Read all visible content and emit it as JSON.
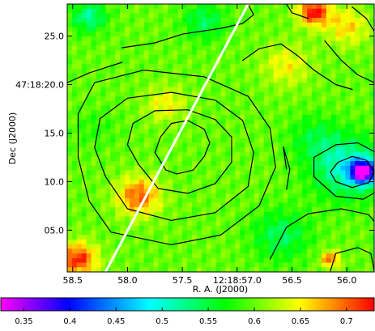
{
  "chart_data": {
    "type": "heatmap",
    "title": "",
    "xlabel": "R. A. (J2000)",
    "ylabel": "Dec (J2000)",
    "x_ticks": [
      "58.5",
      "58.0",
      "57.5",
      "12:18:57.0",
      "56.5",
      "56.0"
    ],
    "x_tick_values": [
      58.5,
      58.0,
      57.5,
      57.0,
      56.5,
      56.0
    ],
    "xlim": [
      58.55,
      55.75
    ],
    "y_ticks": [
      "05.0",
      "10.0",
      "15.0",
      "47:18:20.0",
      "25.0"
    ],
    "y_tick_values": [
      5.0,
      10.0,
      15.0,
      20.0,
      25.0
    ],
    "ylim": [
      0.7,
      28.3
    ],
    "colorbar": {
      "ticks": [
        "0.35",
        "0.4",
        "0.45",
        "0.5",
        "0.55",
        "0.6",
        "0.65",
        "0.7"
      ],
      "tick_values": [
        0.35,
        0.4,
        0.45,
        0.5,
        0.55,
        0.6,
        0.65,
        0.7
      ],
      "range": [
        0.325,
        0.73
      ],
      "colors": [
        "#ff00ff",
        "#0000ff",
        "#00ffff",
        "#00ff00",
        "#ffff00",
        "#ff0000"
      ]
    },
    "image": {
      "grid": [
        64,
        58
      ],
      "background": 0.6,
      "features": [
        {
          "kind": "blob",
          "ra": 55.85,
          "dec": 11.0,
          "sigma": 0.8,
          "amp": -0.26
        },
        {
          "kind": "blob",
          "ra": 56.0,
          "dec": 11.5,
          "sigma": 2.2,
          "amp": -0.1
        },
        {
          "kind": "blob",
          "ra": 56.3,
          "dec": 14.5,
          "sigma": 1.6,
          "amp": -0.04
        },
        {
          "kind": "blob",
          "ra": 56.6,
          "dec": 4.5,
          "sigma": 1.8,
          "amp": -0.06
        },
        {
          "kind": "blob",
          "ra": 57.9,
          "dec": 8.5,
          "sigma": 1.4,
          "amp": 0.1
        },
        {
          "kind": "blob",
          "ra": 58.45,
          "dec": 2.0,
          "sigma": 1.2,
          "amp": 0.12
        },
        {
          "kind": "blob",
          "ra": 56.3,
          "dec": 27.5,
          "sigma": 1.0,
          "amp": 0.13
        },
        {
          "kind": "blob",
          "ra": 56.0,
          "dec": 26.0,
          "sigma": 1.4,
          "amp": 0.06
        },
        {
          "kind": "blob",
          "ra": 57.3,
          "dec": 26.5,
          "sigma": 1.3,
          "amp": -0.06
        },
        {
          "kind": "blob",
          "ra": 58.35,
          "dec": 27.0,
          "sigma": 1.1,
          "amp": -0.08
        },
        {
          "kind": "blob",
          "ra": 57.65,
          "dec": 18.0,
          "sigma": 1.3,
          "amp": 0.05
        },
        {
          "kind": "blob",
          "ra": 57.35,
          "dec": 14.5,
          "sigma": 1.4,
          "amp": 0.0
        },
        {
          "kind": "blob",
          "ra": 58.3,
          "dec": 15.5,
          "sigma": 1.4,
          "amp": -0.02
        },
        {
          "kind": "blob",
          "ra": 56.55,
          "dec": 22.0,
          "sigma": 1.5,
          "amp": 0.05
        },
        {
          "kind": "blob",
          "ra": 56.15,
          "dec": 2.0,
          "sigma": 0.6,
          "amp": 0.1
        }
      ]
    },
    "contours": [
      [
        [
          57.65,
          11.2
        ],
        [
          57.55,
          10.8
        ],
        [
          57.4,
          11.2
        ],
        [
          57.3,
          12.6
        ],
        [
          57.25,
          14.0
        ],
        [
          57.3,
          15.4
        ],
        [
          57.45,
          16.3
        ],
        [
          57.6,
          16.0
        ],
        [
          57.7,
          14.6
        ],
        [
          57.75,
          13.0
        ],
        [
          57.65,
          11.2
        ]
      ],
      [
        [
          57.9,
          11.8
        ],
        [
          57.72,
          9.3
        ],
        [
          57.45,
          8.8
        ],
        [
          57.2,
          9.8
        ],
        [
          57.05,
          12.0
        ],
        [
          57.05,
          14.6
        ],
        [
          57.2,
          16.4
        ],
        [
          57.45,
          17.4
        ],
        [
          57.75,
          17.3
        ],
        [
          57.95,
          16.0
        ],
        [
          58.0,
          13.8
        ],
        [
          57.9,
          11.8
        ]
      ],
      [
        [
          58.2,
          10.5
        ],
        [
          58.0,
          7.2
        ],
        [
          57.6,
          6.0
        ],
        [
          57.2,
          6.8
        ],
        [
          56.9,
          9.5
        ],
        [
          56.85,
          13.0
        ],
        [
          56.95,
          16.3
        ],
        [
          57.2,
          18.4
        ],
        [
          57.6,
          19.2
        ],
        [
          58.0,
          18.6
        ],
        [
          58.25,
          16.5
        ],
        [
          58.3,
          13.5
        ],
        [
          58.2,
          10.5
        ]
      ],
      [
        [
          58.35,
          8.0
        ],
        [
          58.15,
          4.8
        ],
        [
          57.6,
          3.5
        ],
        [
          57.15,
          4.5
        ],
        [
          56.8,
          7.5
        ],
        [
          56.65,
          11.5
        ],
        [
          56.7,
          15.5
        ],
        [
          56.9,
          18.8
        ],
        [
          57.3,
          20.8
        ],
        [
          57.85,
          21.5
        ],
        [
          58.3,
          20.2
        ],
        [
          58.45,
          17.0
        ],
        [
          58.45,
          12.5
        ],
        [
          58.35,
          8.0
        ]
      ],
      [
        [
          56.1,
          10.0
        ],
        [
          55.95,
          9.4
        ],
        [
          55.8,
          9.9
        ],
        [
          55.75,
          11.0
        ],
        [
          55.82,
          12.2
        ],
        [
          55.95,
          12.6
        ],
        [
          56.08,
          12.0
        ],
        [
          56.15,
          11.0
        ],
        [
          56.1,
          10.0
        ]
      ],
      [
        [
          56.3,
          10.5
        ],
        [
          56.1,
          8.5
        ],
        [
          55.85,
          8.2
        ],
        [
          55.65,
          9.5
        ],
        [
          55.6,
          11.0
        ],
        [
          55.7,
          12.8
        ],
        [
          55.9,
          14.0
        ],
        [
          56.1,
          13.8
        ],
        [
          56.3,
          12.5
        ],
        [
          56.3,
          10.5
        ]
      ],
      [
        [
          56.7,
          2.0
        ],
        [
          56.55,
          5.3
        ],
        [
          56.35,
          6.7
        ],
        [
          56.05,
          7.2
        ],
        [
          55.8,
          6.6
        ],
        [
          55.7,
          5.2
        ]
      ],
      [
        [
          56.15,
          0.8
        ],
        [
          56.1,
          2.6
        ],
        [
          55.9,
          3.2
        ],
        [
          55.78,
          2.6
        ],
        [
          55.75,
          0.8
        ]
      ],
      [
        [
          56.55,
          9.2
        ],
        [
          56.52,
          11.3
        ],
        [
          56.58,
          13.6
        ],
        [
          56.55,
          11.3
        ]
      ],
      [
        [
          56.95,
          22.5
        ],
        [
          56.8,
          23.7
        ],
        [
          56.6,
          24.2
        ],
        [
          56.45,
          23.0
        ],
        [
          56.3,
          21.5
        ],
        [
          56.1,
          20.0
        ],
        [
          55.95,
          19.5
        ]
      ],
      [
        [
          58.05,
          23.8
        ],
        [
          57.75,
          24.3
        ],
        [
          57.5,
          25.2
        ],
        [
          57.15,
          25.8
        ],
        [
          56.95,
          26.3
        ],
        [
          56.85,
          27.2
        ],
        [
          56.9,
          28.3
        ]
      ],
      [
        [
          58.55,
          20.2
        ],
        [
          58.35,
          21.2
        ],
        [
          58.05,
          22.3
        ]
      ],
      [
        [
          56.55,
          28.3
        ],
        [
          56.5,
          27.4
        ],
        [
          56.35,
          26.8
        ]
      ],
      [
        [
          55.95,
          28.0
        ],
        [
          55.82,
          26.8
        ],
        [
          55.75,
          25.5
        ]
      ],
      [
        [
          56.2,
          24.5
        ],
        [
          56.05,
          22.5
        ],
        [
          55.9,
          21.0
        ],
        [
          55.75,
          20.2
        ]
      ]
    ],
    "slit_line": [
      [
        58.2,
        0.7
      ],
      [
        56.9,
        28.3
      ]
    ]
  }
}
